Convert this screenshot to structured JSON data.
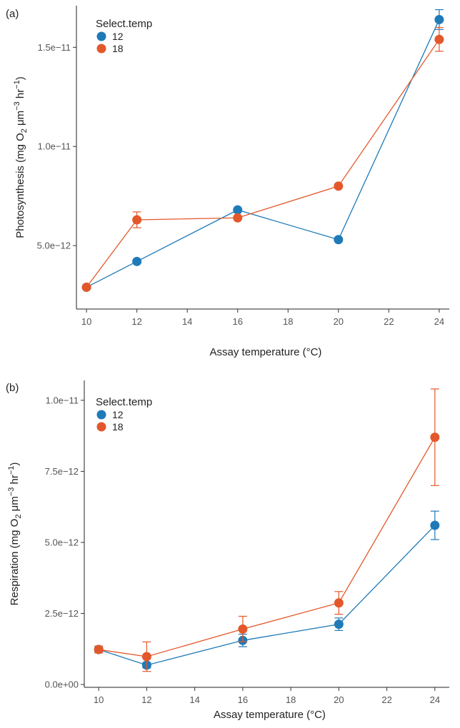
{
  "chart_data": [
    {
      "panel": "(a)",
      "type": "line",
      "xlabel": "Assay temperature (°C)",
      "ylabel_base": "Photosynthesis (mg O",
      "ylabel_sub": "2",
      "ylabel_mid": " μm",
      "ylabel_sup1": "−3",
      "ylabel_mid2": " hr",
      "ylabel_sup2": "−1",
      "ylabel_end": ")",
      "xlim": [
        9.6,
        24.4
      ],
      "ylim": [
        1.8e-12,
        1.71e-11
      ],
      "x_ticks": [
        10,
        12,
        14,
        16,
        18,
        20,
        22,
        24
      ],
      "y_ticks": [
        5e-12,
        1e-11,
        1.5e-11
      ],
      "y_tick_labels": [
        "5.0e−12",
        "1.0e−11",
        "1.5e−11"
      ],
      "legend_title": "Select.temp",
      "legend_position": "top-left",
      "series": [
        {
          "name": "12",
          "color": "#1f7ab8",
          "points": [
            {
              "x": 10,
              "y": 2.9e-12,
              "err": 0
            },
            {
              "x": 12,
              "y": 4.2e-12,
              "err": 0
            },
            {
              "x": 16,
              "y": 6.8e-12,
              "err": 0
            },
            {
              "x": 20,
              "y": 5.3e-12,
              "err": 0
            },
            {
              "x": 24,
              "y": 1.64e-11,
              "err": 5e-13
            }
          ]
        },
        {
          "name": "18",
          "color": "#e3582b",
          "points": [
            {
              "x": 10,
              "y": 2.9e-12,
              "err": 0
            },
            {
              "x": 12,
              "y": 6.3e-12,
              "err": 4e-13
            },
            {
              "x": 16,
              "y": 6.4e-12,
              "err": 0
            },
            {
              "x": 20,
              "y": 8e-12,
              "err": 0
            },
            {
              "x": 24,
              "y": 1.54e-11,
              "err": 6e-13
            }
          ]
        }
      ]
    },
    {
      "panel": "(b)",
      "type": "line",
      "xlabel": "Assay temperature (°C)",
      "ylabel_base": "Respiration (mg O",
      "ylabel_sub": "2",
      "ylabel_mid": " μm",
      "ylabel_sup1": "−3",
      "ylabel_mid2": " hr",
      "ylabel_sup2": "−1",
      "ylabel_end": ")",
      "xlim": [
        9.4,
        24.6
      ],
      "ylim": [
        -1e-13,
        1.07e-11
      ],
      "x_ticks": [
        10,
        12,
        14,
        16,
        18,
        20,
        22,
        24
      ],
      "y_ticks": [
        0,
        2.5e-12,
        5e-12,
        7.5e-12,
        1e-11
      ],
      "y_tick_labels": [
        "0.0e+00",
        "2.5e−12",
        "5.0e−12",
        "7.5e−12",
        "1.0e−11"
      ],
      "legend_title": "Select.temp",
      "legend_position": "top-left",
      "series": [
        {
          "name": "12",
          "color": "#1f7ab8",
          "points": [
            {
              "x": 10,
              "y": 1.23e-12,
              "err": 8e-14
            },
            {
              "x": 12,
              "y": 6.8e-13,
              "err": 1e-13
            },
            {
              "x": 16,
              "y": 1.55e-12,
              "err": 2.2e-13
            },
            {
              "x": 20,
              "y": 2.12e-12,
              "err": 2.2e-13
            },
            {
              "x": 24,
              "y": 5.6e-12,
              "err": 5e-13
            }
          ]
        },
        {
          "name": "18",
          "color": "#e3582b",
          "points": [
            {
              "x": 10,
              "y": 1.23e-12,
              "err": 1.2e-13
            },
            {
              "x": 12,
              "y": 9.8e-13,
              "err": 5.2e-13
            },
            {
              "x": 16,
              "y": 1.95e-12,
              "err": 4.5e-13
            },
            {
              "x": 20,
              "y": 2.87e-12,
              "err": 4e-13
            },
            {
              "x": 24,
              "y": 8.7e-12,
              "err": 1.7e-12
            }
          ]
        }
      ]
    }
  ]
}
